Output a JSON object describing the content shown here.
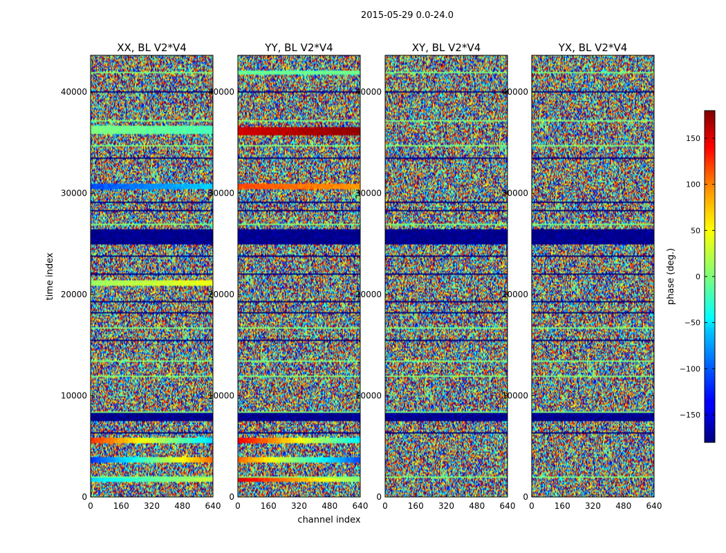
{
  "figure": {
    "suptitle": "2015-05-29 0.0-24.0",
    "xlabel": "channel index",
    "ylabel": "time index"
  },
  "chart_data": [
    {
      "type": "heatmap",
      "title": "XX, BL V2*V4",
      "xlim": [
        0,
        640
      ],
      "ylim": [
        0,
        43600
      ],
      "xticks": [
        0,
        160,
        320,
        480,
        640
      ],
      "yticks": [
        0,
        10000,
        20000,
        30000,
        40000
      ],
      "value_range": [
        -180,
        180
      ],
      "coherent_bands": [
        {
          "t0": 35900,
          "t1": 36600,
          "phase0": 0,
          "phase1": -20
        },
        {
          "t0": 30400,
          "t1": 30900,
          "phase0": -110,
          "phase1": -60
        },
        {
          "t0": 20900,
          "t1": 21300,
          "phase0": 10,
          "phase1": 40
        },
        {
          "t0": 5400,
          "t1": 5800,
          "phase0": 120,
          "phase1": -60
        },
        {
          "t0": 3500,
          "t1": 3900,
          "phase0": -120,
          "phase1": 100
        },
        {
          "t0": 1600,
          "t1": 1900,
          "phase0": -60,
          "phase1": 30
        }
      ]
    },
    {
      "type": "heatmap",
      "title": "YY, BL V2*V4",
      "xlim": [
        0,
        640
      ],
      "ylim": [
        0,
        43600
      ],
      "xticks": [
        0,
        160,
        320,
        480,
        640
      ],
      "yticks": [
        0,
        10000,
        20000,
        30000,
        40000
      ],
      "value_range": [
        -180,
        180
      ],
      "coherent_bands": [
        {
          "t0": 41700,
          "t1": 42100,
          "phase0": -20,
          "phase1": -10
        },
        {
          "t0": 35700,
          "t1": 36400,
          "phase0": 150,
          "phase1": 175
        },
        {
          "t0": 30500,
          "t1": 30900,
          "phase0": 110,
          "phase1": 80
        },
        {
          "t0": 5400,
          "t1": 5800,
          "phase0": 140,
          "phase1": -50
        },
        {
          "t0": 3500,
          "t1": 3900,
          "phase0": 100,
          "phase1": -110
        },
        {
          "t0": 1600,
          "t1": 1900,
          "phase0": 150,
          "phase1": 0
        }
      ]
    },
    {
      "type": "heatmap",
      "title": "XY, BL V2*V4",
      "xlim": [
        0,
        640
      ],
      "ylim": [
        0,
        43600
      ],
      "xticks": [
        0,
        160,
        320,
        480,
        640
      ],
      "yticks": [
        0,
        10000,
        20000,
        30000,
        40000
      ],
      "value_range": [
        -180,
        180
      ],
      "coherent_bands": []
    },
    {
      "type": "heatmap",
      "title": "YX, BL V2*V4",
      "xlim": [
        0,
        640
      ],
      "ylim": [
        0,
        43600
      ],
      "xticks": [
        0,
        160,
        320,
        480,
        640
      ],
      "yticks": [
        0,
        10000,
        20000,
        30000,
        40000
      ],
      "value_range": [
        -180,
        180
      ],
      "coherent_bands": []
    }
  ],
  "colorbar": {
    "label": "phase (deg.)",
    "vmin": -180,
    "vmax": 180,
    "ticks": [
      -150,
      -100,
      -50,
      0,
      50,
      100,
      150
    ],
    "colormap": "jet"
  },
  "shared_features": {
    "blank_bands": [
      {
        "t0": 7500,
        "t1": 8200
      },
      {
        "t0": 25000,
        "t1": 26300
      }
    ],
    "time_gap_lines": [
      2100,
      6400,
      8400,
      12000,
      13500,
      15500,
      16800,
      18200,
      19300,
      22100,
      23800,
      27000,
      28300,
      29200,
      33500,
      34800,
      37200,
      40000,
      42000
    ]
  }
}
